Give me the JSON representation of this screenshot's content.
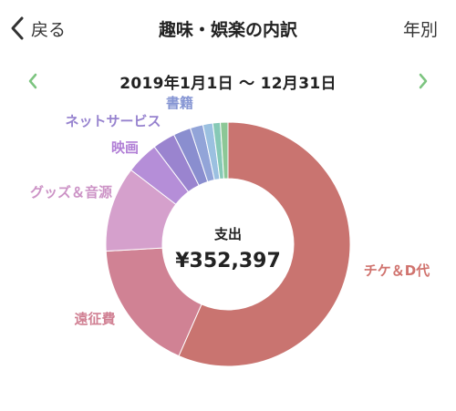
{
  "nav": {
    "back_label": "戻る",
    "title": "趣味・娯楽の内訳",
    "period_button": "年別"
  },
  "range": {
    "text": "2019年1月1日 〜 12月31日",
    "accent_color": "#7cc47f"
  },
  "chart_data": {
    "type": "pie",
    "center_label": "支出",
    "center_value": "¥352,397",
    "categories": [
      "チケ＆D代",
      "遠征費",
      "グッズ＆音源",
      "映画",
      "ネットサービス",
      "書籍",
      "",
      "",
      "",
      ""
    ],
    "values": [
      0.566,
      0.175,
      0.113,
      0.043,
      0.03,
      0.023,
      0.017,
      0.013,
      0.01,
      0.01
    ],
    "colors": [
      "#c97470",
      "#d08294",
      "#d5a0cc",
      "#b58ed8",
      "#9a84cf",
      "#8a8ecf",
      "#92a4d8",
      "#9bc0e0",
      "#86c9b6",
      "#8cc796"
    ],
    "label_colors": [
      "#d0736e",
      "#d07f92",
      "#cc93c6",
      "#b17fd6",
      "#9783cf",
      "#8595d3",
      "",
      "",
      "",
      ""
    ]
  }
}
